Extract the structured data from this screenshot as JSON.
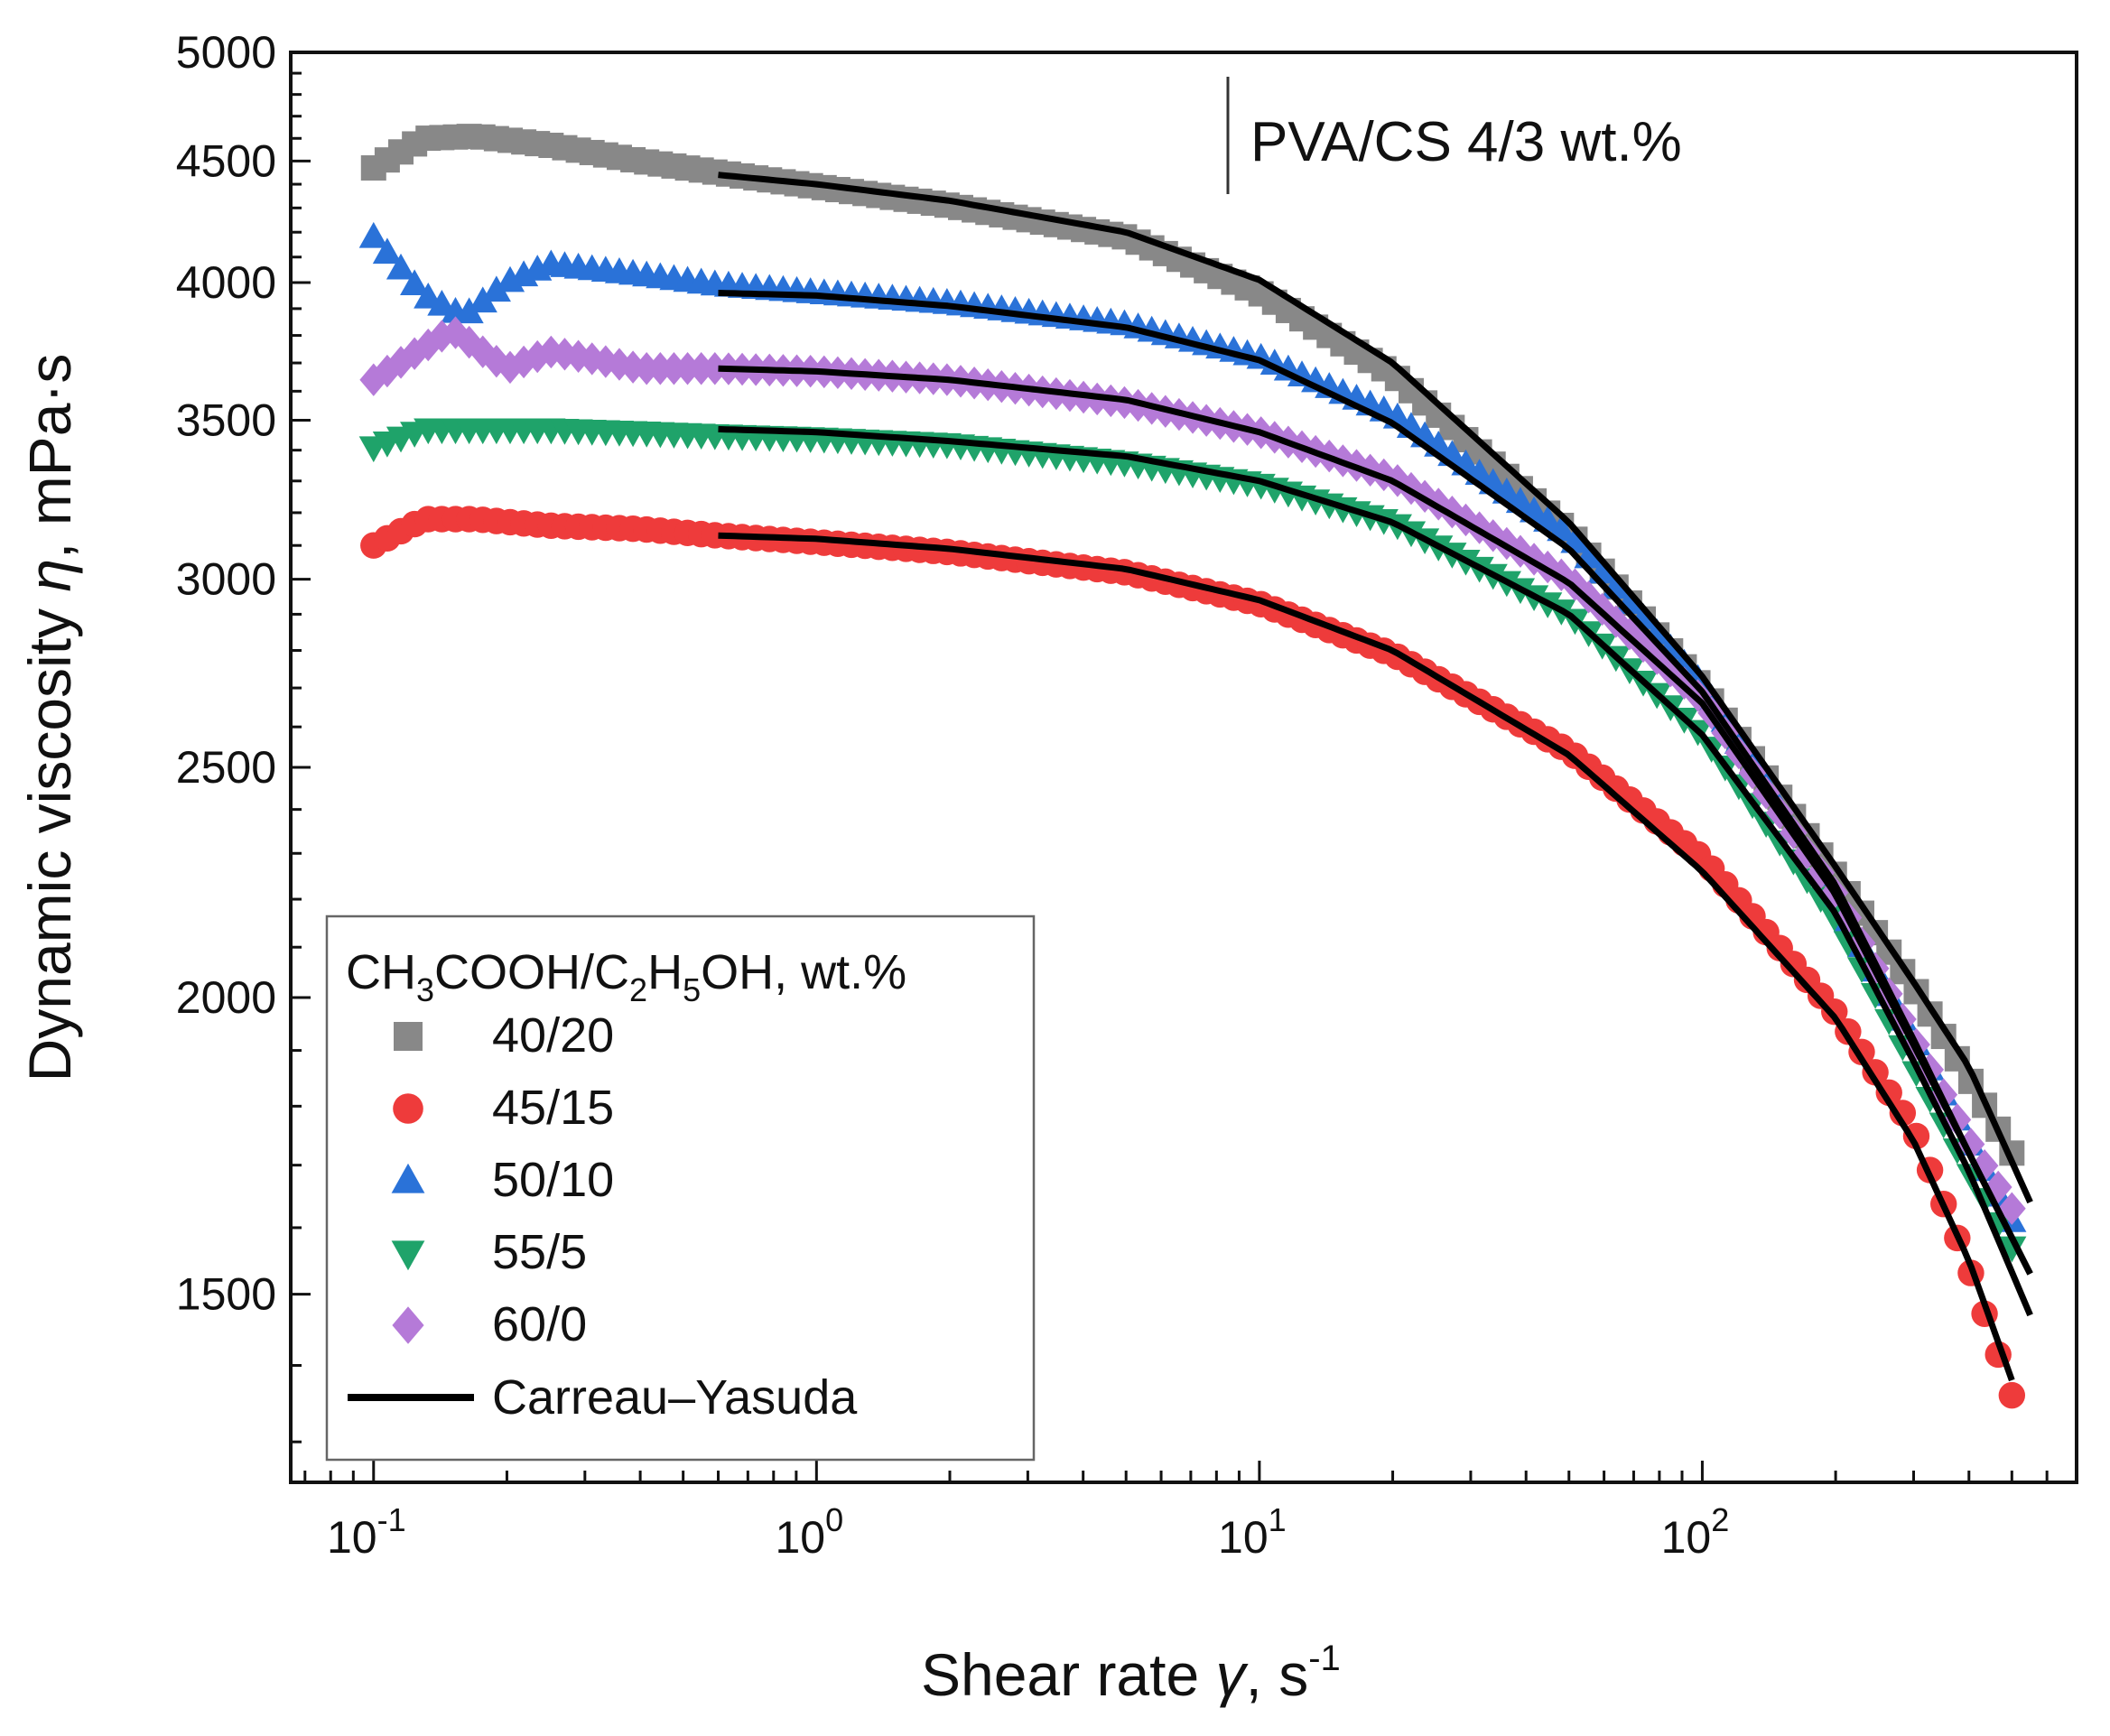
{
  "chart_data": {
    "type": "scatter",
    "title": "",
    "annotation": "PVA/CS 4/3 wt.%",
    "xlabel": {
      "prefix": "Shear rate ",
      "symbol": "γ",
      "suffix": ", s",
      "exponent": "-1"
    },
    "ylabel": {
      "prefix": "Dynamic viscosity ",
      "symbol": "η",
      "suffix": ", mPa·s"
    },
    "xscale": "log",
    "yscale": "log",
    "xlim": [
      0.065,
      700
    ],
    "ylim": [
      1250,
      5000
    ],
    "x_ticks": [
      {
        "value": 0.1,
        "base": "10",
        "exp": "-1"
      },
      {
        "value": 1,
        "base": "10",
        "exp": "0"
      },
      {
        "value": 10,
        "base": "10",
        "exp": "1"
      },
      {
        "value": 100,
        "base": "10",
        "exp": "2"
      }
    ],
    "y_ticks": [
      1500,
      2000,
      2500,
      3000,
      3500,
      4000,
      4500,
      5000
    ],
    "legend": {
      "title_parts": [
        "CH",
        "3",
        "COOH/C",
        "2",
        "H",
        "5",
        "OH, wt.%"
      ],
      "placement": "bottom-left"
    },
    "series": [
      {
        "name": "40/20",
        "marker": "square",
        "color": "#888888",
        "x": [
          0.1,
          0.13,
          0.17,
          0.25,
          0.4,
          0.6,
          1,
          2,
          5,
          10,
          20,
          50,
          100,
          200,
          300,
          400,
          500
        ],
        "y": [
          4470,
          4600,
          4610,
          4570,
          4500,
          4450,
          4390,
          4310,
          4180,
          3960,
          3660,
          3140,
          2700,
          2250,
          2020,
          1850,
          1720
        ]
      },
      {
        "name": "45/15",
        "marker": "circle",
        "color": "#ee3b3b",
        "x": [
          0.1,
          0.13,
          0.17,
          0.25,
          0.4,
          0.6,
          1,
          2,
          5,
          10,
          20,
          50,
          100,
          200,
          300,
          400,
          500
        ],
        "y": [
          3100,
          3180,
          3180,
          3160,
          3150,
          3130,
          3110,
          3080,
          3020,
          2930,
          2790,
          2540,
          2290,
          1970,
          1760,
          1540,
          1360
        ]
      },
      {
        "name": "50/10",
        "marker": "triangle-up",
        "color": "#2a72d8",
        "x": [
          0.1,
          0.13,
          0.16,
          0.2,
          0.25,
          0.4,
          0.6,
          1,
          2,
          5,
          10,
          20,
          50,
          100,
          200,
          300,
          400,
          500
        ],
        "y": [
          4180,
          3950,
          3870,
          4000,
          4070,
          4030,
          3990,
          3960,
          3920,
          3840,
          3720,
          3520,
          3130,
          2710,
          2200,
          1920,
          1740,
          1610
        ]
      },
      {
        "name": "55/5",
        "marker": "triangle-down",
        "color": "#1fa36a",
        "x": [
          0.1,
          0.13,
          0.17,
          0.25,
          0.4,
          0.6,
          1,
          2,
          5,
          10,
          20,
          50,
          100,
          200,
          300,
          400,
          500
        ],
        "y": [
          3410,
          3470,
          3470,
          3470,
          3460,
          3450,
          3440,
          3420,
          3360,
          3290,
          3170,
          2900,
          2580,
          2160,
          1870,
          1690,
          1570
        ]
      },
      {
        "name": "60/0",
        "marker": "diamond",
        "color": "#b57ad8",
        "x": [
          0.1,
          0.12,
          0.15,
          0.2,
          0.25,
          0.3,
          0.4,
          0.6,
          1,
          2,
          5,
          10,
          20,
          50,
          100,
          200,
          300,
          400,
          500
        ],
        "y": [
          3640,
          3720,
          3820,
          3680,
          3740,
          3720,
          3680,
          3680,
          3670,
          3640,
          3560,
          3460,
          3310,
          3000,
          2670,
          2210,
          1920,
          1740,
          1630
        ]
      },
      {
        "name": "Carreau–Yasuda",
        "marker": "line",
        "color": "#000000",
        "fits": [
          {
            "for": "40/20",
            "x": [
              0.6,
              1,
              2,
              5,
              10,
              20,
              50,
              100,
              200,
              300,
              400,
              550
            ],
            "y": [
              4440,
              4400,
              4330,
              4200,
              4010,
              3700,
              3170,
              2730,
              2270,
              2030,
              1870,
              1640
            ]
          },
          {
            "for": "45/15",
            "x": [
              0.6,
              1,
              2,
              5,
              10,
              20,
              50,
              100,
              200,
              300,
              400,
              500
            ],
            "y": [
              3130,
              3120,
              3090,
              3030,
              2940,
              2800,
              2530,
              2260,
              1960,
              1740,
              1550,
              1380
            ]
          },
          {
            "for": "50/10",
            "x": [
              0.6,
              1,
              2,
              5,
              10,
              20,
              50,
              100,
              200,
              300,
              400,
              550
            ],
            "y": [
              3960,
              3950,
              3910,
              3830,
              3710,
              3490,
              3090,
              2690,
              2230,
              1920,
              1720,
              1530
            ]
          },
          {
            "for": "55/5",
            "x": [
              0.6,
              1,
              2,
              5,
              10,
              20,
              50,
              100,
              200,
              300,
              400,
              550
            ],
            "y": [
              3470,
              3460,
              3430,
              3380,
              3300,
              3170,
              2900,
              2580,
              2170,
              1880,
              1690,
              1470
            ]
          },
          {
            "for": "60/0",
            "x": [
              0.6,
              1,
              2,
              5,
              10,
              20,
              50,
              100,
              200,
              300,
              400,
              550
            ],
            "y": [
              3680,
              3670,
              3640,
              3570,
              3460,
              3300,
              2990,
              2660,
              2210,
              1910,
              1720,
              1530
            ]
          }
        ]
      }
    ]
  }
}
